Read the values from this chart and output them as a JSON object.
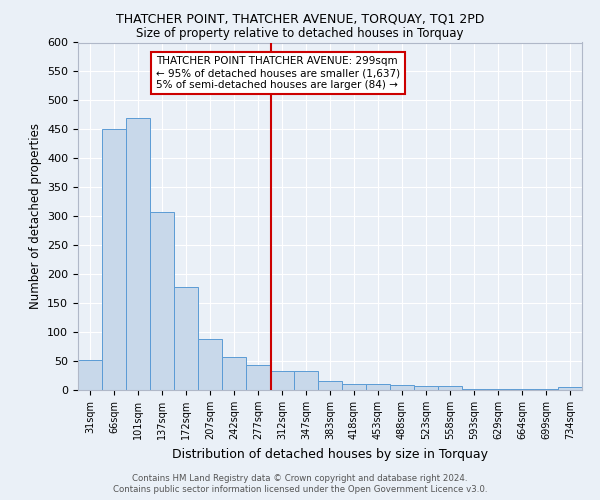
{
  "title": "THATCHER POINT, THATCHER AVENUE, TORQUAY, TQ1 2PD",
  "subtitle": "Size of property relative to detached houses in Torquay",
  "xlabel": "Distribution of detached houses by size in Torquay",
  "ylabel": "Number of detached properties",
  "bar_labels": [
    "31sqm",
    "66sqm",
    "101sqm",
    "137sqm",
    "172sqm",
    "207sqm",
    "242sqm",
    "277sqm",
    "312sqm",
    "347sqm",
    "383sqm",
    "418sqm",
    "453sqm",
    "488sqm",
    "523sqm",
    "558sqm",
    "593sqm",
    "629sqm",
    "664sqm",
    "699sqm",
    "734sqm"
  ],
  "bar_values": [
    52,
    450,
    470,
    308,
    178,
    88,
    57,
    43,
    32,
    32,
    15,
    10,
    10,
    8,
    7,
    7,
    2,
    2,
    2,
    2,
    5
  ],
  "bar_color": "#c8d8ea",
  "bar_edge_color": "#5b9bd5",
  "vline_x": 7.525,
  "vline_color": "#cc0000",
  "annotation_text": "THATCHER POINT THATCHER AVENUE: 299sqm\n← 95% of detached houses are smaller (1,637)\n5% of semi-detached houses are larger (84) →",
  "annotation_box_color": "#ffffff",
  "annotation_box_edge": "#cc0000",
  "ylim": [
    0,
    600
  ],
  "yticks": [
    0,
    50,
    100,
    150,
    200,
    250,
    300,
    350,
    400,
    450,
    500,
    550,
    600
  ],
  "bg_color": "#eaf0f7",
  "grid_color": "#ffffff",
  "footer_line1": "Contains HM Land Registry data © Crown copyright and database right 2024.",
  "footer_line2": "Contains public sector information licensed under the Open Government Licence v3.0."
}
